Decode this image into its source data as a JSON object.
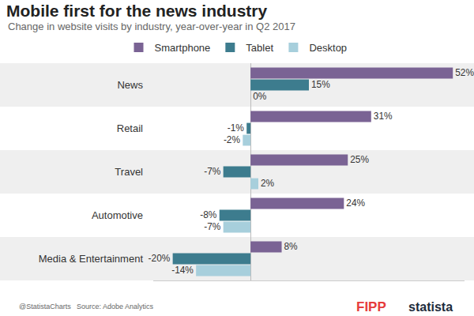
{
  "chart_data": {
    "type": "bar",
    "orientation": "horizontal",
    "title": "Mobile first for the news industry",
    "subtitle": "Change in website visits by industry, year-over-year in Q2 2017",
    "categories": [
      "News",
      "Retail",
      "Travel",
      "Automotive",
      "Media & Entertainment"
    ],
    "series": [
      {
        "name": "Smartphone",
        "color": "#7a6394",
        "values": [
          52,
          31,
          25,
          24,
          8
        ],
        "value_labels": [
          "52%",
          "31%",
          "25%",
          "24%",
          "8%"
        ]
      },
      {
        "name": "Tablet",
        "color": "#3d7c8e",
        "values": [
          15,
          -1,
          -7,
          -8,
          -20
        ],
        "value_labels": [
          "15%",
          "-1%",
          "-7%",
          "-8%",
          "-20%"
        ]
      },
      {
        "name": "Desktop",
        "color": "#a7cfdc",
        "values": [
          0,
          -2,
          2,
          -7,
          -14
        ],
        "value_labels": [
          "0%",
          "-2%",
          "2%",
          "-7%",
          "-14%"
        ]
      }
    ],
    "xlim": [
      -25,
      55
    ],
    "xticks": [],
    "tick_labels": "y",
    "data_labels": true,
    "grid": false,
    "legend": "top",
    "annotations": [
      "@StatistaCharts",
      "Source: Adobe Analytics",
      "FIPP",
      "statista"
    ]
  }
}
